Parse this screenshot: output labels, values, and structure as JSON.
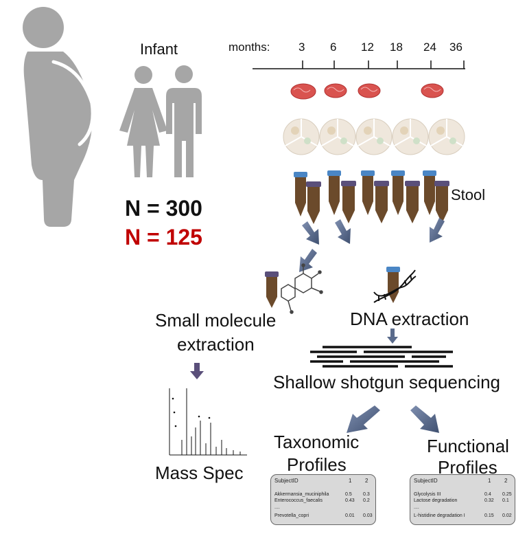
{
  "cohort": {
    "infant_label": "Infant",
    "n_total": "N = 300",
    "n_subset": "N = 125"
  },
  "timeline": {
    "unit_label": "months:",
    "ticks": [
      "3",
      "6",
      "12",
      "18",
      "24",
      "36"
    ]
  },
  "samples": {
    "stool_label": "Stool"
  },
  "pipeline": {
    "small_molecule_line1": "Small molecule",
    "small_molecule_line2": "extraction",
    "dna_extraction": "DNA extraction",
    "sequencing": "Shallow shotgun sequencing",
    "mass_spec": "Mass Spec",
    "taxonomic_line1": "Taxonomic",
    "taxonomic_line2": "Profiles",
    "functional_line1": "Functional",
    "functional_line2": "Profiles"
  },
  "taxonomic_table": {
    "header": [
      "SubjectID",
      "1",
      "2"
    ],
    "rows": [
      [
        "Akkermansia_muciniphila",
        "0.5",
        "0.3"
      ],
      [
        "Enterococcus_faecalis",
        "0.43",
        "0.2"
      ],
      [
        "....",
        "",
        ""
      ],
      [
        "Prevotella_copri",
        "0.01",
        "0.03"
      ]
    ]
  },
  "functional_table": {
    "header": [
      "SubjectID",
      "1",
      "2"
    ],
    "rows": [
      [
        "Glycolysis III",
        "0.4",
        "0.25"
      ],
      [
        "Lactose degradation",
        "0.32",
        "0.1"
      ],
      [
        "....",
        "",
        ""
      ],
      [
        "L-histidine degradation I",
        "0.15",
        "0.02"
      ]
    ]
  },
  "colors": {
    "silhouette": "#a6a6a6",
    "brain": "#d9534f",
    "tube_body": "#6b4a2b",
    "cap_blue": "#4a86c5",
    "cap_purple": "#5a4f7a",
    "arrow": "#5a6b8c",
    "red_text": "#c00000"
  }
}
